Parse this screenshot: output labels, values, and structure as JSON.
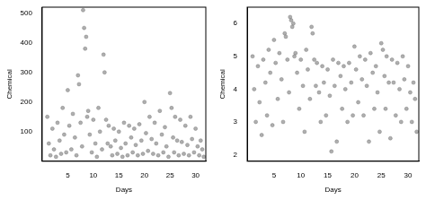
{
  "chart_data": [
    {
      "type": "scatter",
      "x_label": "Days",
      "y_label": "Chemical",
      "color": "#7a7a7a",
      "marker": "circle",
      "grid": false,
      "xlim": [
        0,
        32
      ],
      "xticks": [
        5,
        10,
        15,
        20,
        25,
        30
      ],
      "ylim": [
        0,
        520
      ],
      "yticks": [
        100,
        200,
        300,
        400,
        500
      ],
      "x": [
        1.0,
        1.3,
        1.6,
        2.0,
        2.3,
        2.7,
        3.0,
        3.4,
        3.7,
        4.0,
        4.3,
        4.7,
        5.0,
        5.3,
        5.7,
        6.0,
        6.4,
        6.7,
        7.0,
        7.2,
        7.5,
        7.8,
        8.0,
        8.2,
        8.4,
        8.6,
        8.8,
        9.0,
        9.3,
        9.7,
        10.0,
        10.4,
        10.7,
        11.0,
        11.3,
        11.7,
        12.0,
        12.2,
        12.5,
        12.8,
        13.0,
        13.4,
        13.7,
        14.0,
        14.3,
        14.7,
        15.0,
        15.4,
        15.7,
        16.0,
        16.3,
        16.7,
        17.0,
        17.4,
        17.7,
        18.0,
        18.3,
        18.7,
        19.0,
        19.4,
        19.7,
        20.0,
        20.3,
        20.7,
        21.0,
        21.4,
        21.7,
        22.0,
        22.3,
        22.7,
        23.0,
        23.4,
        23.7,
        24.0,
        24.3,
        24.7,
        25.0,
        25.3,
        25.6,
        25.8,
        26.0,
        26.4,
        26.7,
        27.0,
        27.3,
        27.7,
        28.0,
        28.4,
        28.7,
        29.0,
        29.3,
        29.7,
        30.0,
        30.4,
        30.7,
        31.0,
        31.3,
        31.6
      ],
      "values": [
        150,
        60,
        20,
        110,
        40,
        15,
        130,
        70,
        25,
        180,
        90,
        30,
        240,
        120,
        40,
        160,
        80,
        20,
        290,
        260,
        130,
        50,
        510,
        450,
        380,
        420,
        150,
        170,
        90,
        30,
        140,
        60,
        15,
        180,
        100,
        40,
        360,
        300,
        140,
        60,
        120,
        50,
        20,
        110,
        70,
        25,
        100,
        45,
        15,
        130,
        60,
        20,
        120,
        80,
        30,
        110,
        55,
        20,
        125,
        70,
        25,
        200,
        95,
        35,
        150,
        75,
        25,
        130,
        60,
        20,
        170,
        90,
        30,
        115,
        50,
        15,
        230,
        180,
        80,
        30,
        150,
        70,
        20,
        140,
        65,
        25,
        120,
        55,
        20,
        150,
        75,
        30,
        110,
        50,
        20,
        70,
        40,
        15
      ]
    },
    {
      "type": "scatter",
      "x_label": "Days",
      "y_label": "Chemical",
      "color": "#7a7a7a",
      "marker": "circle",
      "grid": false,
      "xlim": [
        0,
        32
      ],
      "xticks": [
        5,
        10,
        15,
        20,
        25,
        30
      ],
      "ylim": [
        1.8,
        6.5
      ],
      "yticks": [
        2,
        3,
        4,
        5,
        6
      ],
      "x": [
        1.0,
        1.3,
        1.6,
        2.0,
        2.3,
        2.7,
        3.0,
        3.4,
        3.7,
        4.0,
        4.3,
        4.7,
        5.0,
        5.3,
        5.7,
        6.0,
        6.4,
        6.7,
        7.0,
        7.2,
        7.5,
        7.8,
        8.0,
        8.2,
        8.4,
        8.6,
        8.8,
        9.0,
        9.3,
        9.7,
        10.0,
        10.4,
        10.7,
        11.0,
        11.3,
        11.7,
        12.0,
        12.2,
        12.5,
        12.8,
        13.0,
        13.4,
        13.7,
        14.0,
        14.3,
        14.7,
        15.0,
        15.4,
        15.7,
        16.0,
        16.3,
        16.7,
        17.0,
        17.4,
        17.7,
        18.0,
        18.3,
        18.7,
        19.0,
        19.4,
        19.7,
        20.0,
        20.3,
        20.7,
        21.0,
        21.4,
        21.7,
        22.0,
        22.3,
        22.7,
        23.0,
        23.4,
        23.7,
        24.0,
        24.3,
        24.7,
        25.0,
        25.3,
        25.6,
        25.8,
        26.0,
        26.4,
        26.7,
        27.0,
        27.3,
        27.7,
        28.0,
        28.4,
        28.7,
        29.0,
        29.3,
        29.7,
        30.0,
        30.4,
        30.7,
        31.0,
        31.3,
        31.6
      ],
      "values": [
        5.0,
        4.0,
        3.0,
        4.7,
        3.6,
        2.6,
        4.9,
        4.2,
        3.2,
        5.2,
        4.5,
        2.9,
        5.5,
        4.8,
        3.7,
        5.1,
        4.3,
        3.0,
        5.7,
        5.6,
        4.9,
        3.9,
        6.2,
        6.1,
        5.9,
        6.0,
        5.0,
        5.1,
        4.5,
        3.4,
        4.9,
        4.1,
        2.7,
        5.2,
        4.6,
        3.7,
        5.9,
        5.7,
        4.9,
        4.1,
        4.8,
        3.9,
        3.0,
        4.7,
        4.2,
        3.2,
        4.6,
        3.8,
        2.1,
        4.9,
        4.1,
        2.4,
        4.8,
        4.4,
        3.4,
        4.7,
        4.0,
        3.0,
        4.8,
        4.2,
        3.2,
        5.3,
        4.6,
        3.6,
        5.0,
        4.3,
        3.2,
        4.9,
        4.1,
        2.4,
        5.1,
        4.5,
        3.4,
        4.7,
        3.9,
        2.7,
        5.4,
        5.2,
        4.4,
        3.4,
        5.0,
        4.2,
        2.5,
        4.9,
        4.2,
        3.2,
        4.8,
        4.0,
        3.0,
        5.0,
        4.3,
        3.4,
        4.7,
        3.9,
        3.0,
        4.2,
        3.7,
        2.7
      ]
    }
  ]
}
